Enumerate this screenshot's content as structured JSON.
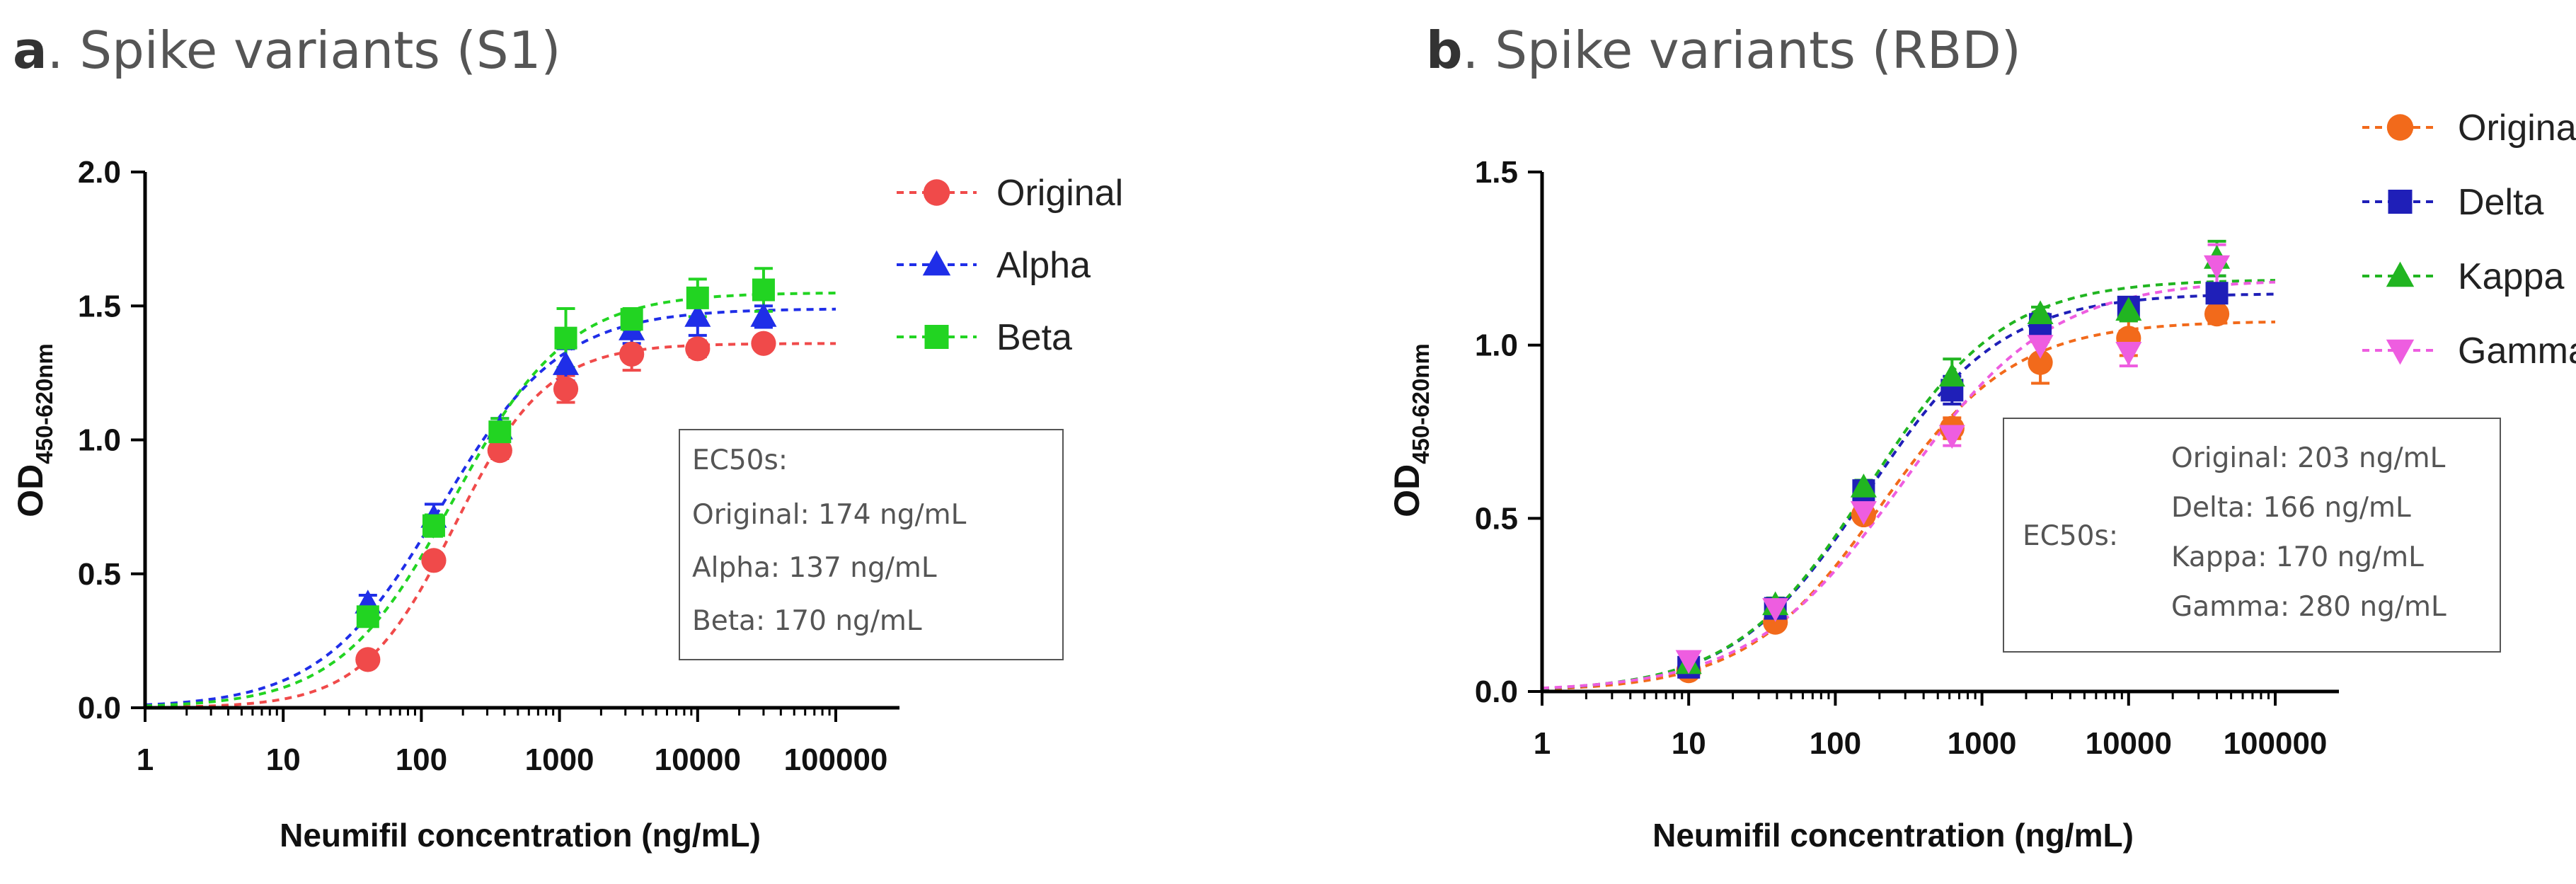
{
  "chart_data": [
    {
      "type": "line",
      "panel_letter": "a",
      "title": ". Spike variants (S1)",
      "xlabel": "Neumifil concentration (ng/mL)",
      "ylabel": "OD",
      "ylabel_subscript": "450-620nm",
      "xscale": "log10",
      "xlim": [
        1,
        100000
      ],
      "ylim": [
        0,
        2.0
      ],
      "xticks": [
        1,
        10,
        100,
        1000,
        10000,
        100000
      ],
      "xtick_labels": [
        "1",
        "10",
        "100",
        "1000",
        "10000",
        "100000"
      ],
      "yticks": [
        0,
        0.5,
        1.0,
        1.5,
        2.0
      ],
      "ytick_labels": [
        "0.0",
        "0.5",
        "1.0",
        "1.5",
        "2.0"
      ],
      "legend_position": "top-right",
      "series": [
        {
          "name": "Original",
          "color": "#f04a4a",
          "marker": "circle",
          "x": [
            41,
            123,
            370,
            1111,
            3333,
            10000,
            30000
          ],
          "y": [
            0.18,
            0.55,
            0.96,
            1.19,
            1.32,
            1.34,
            1.36
          ],
          "err": [
            0.02,
            0.02,
            0.03,
            0.05,
            0.06,
            0.03,
            0.02
          ],
          "fit": {
            "bottom": 0.0,
            "top": 1.36,
            "ec50": 174,
            "hill": 1.3
          }
        },
        {
          "name": "Alpha",
          "color": "#1f2ee8",
          "marker": "triangle",
          "x": [
            41,
            123,
            370,
            1111,
            3333,
            10000,
            30000
          ],
          "y": [
            0.39,
            0.71,
            1.04,
            1.28,
            1.41,
            1.46,
            1.46
          ],
          "err": [
            0.03,
            0.05,
            0.04,
            0.06,
            0.05,
            0.07,
            0.04
          ],
          "fit": {
            "bottom": 0.0,
            "top": 1.49,
            "ec50": 137,
            "hill": 1.0
          }
        },
        {
          "name": "Beta",
          "color": "#22d422",
          "marker": "square",
          "x": [
            41,
            123,
            370,
            1111,
            3333,
            10000,
            30000
          ],
          "y": [
            0.34,
            0.68,
            1.03,
            1.38,
            1.45,
            1.53,
            1.56
          ],
          "err": [
            0.03,
            0.04,
            0.05,
            0.11,
            0.04,
            0.07,
            0.08
          ],
          "fit": {
            "bottom": 0.0,
            "top": 1.55,
            "ec50": 170,
            "hill": 1.05
          }
        }
      ],
      "annotation": {
        "heading": "EC50s:",
        "lines": [
          "Original: 174 ng/mL",
          "Alpha: 137 ng/mL",
          "Beta: 170 ng/mL"
        ]
      }
    },
    {
      "type": "line",
      "panel_letter": "b",
      "title": ". Spike variants (RBD)",
      "xlabel": "Neumifil concentration (ng/mL)",
      "ylabel": "OD",
      "ylabel_subscript": "450-620nm",
      "xscale": "log10",
      "xlim": [
        1,
        100000
      ],
      "ylim": [
        0,
        1.5
      ],
      "xticks": [
        1,
        10,
        100,
        1000,
        10000,
        100000
      ],
      "xtick_labels": [
        "1",
        "10",
        "100",
        "1000",
        "10000",
        "100000"
      ],
      "yticks": [
        0,
        0.5,
        1.0,
        1.5
      ],
      "ytick_labels": [
        "0.0",
        "0.5",
        "1.0",
        "1.5"
      ],
      "legend_position": "top-right",
      "series": [
        {
          "name": "Original",
          "color": "#f26a1b",
          "marker": "circle",
          "x": [
            10,
            39,
            156,
            625,
            2500,
            10000,
            40000
          ],
          "y": [
            0.06,
            0.2,
            0.51,
            0.76,
            0.95,
            1.02,
            1.09
          ],
          "err": [
            0.01,
            0.02,
            0.02,
            0.03,
            0.06,
            0.05,
            0.02
          ],
          "fit": {
            "bottom": 0.0,
            "top": 1.07,
            "ec50": 203,
            "hill": 0.95
          }
        },
        {
          "name": "Delta",
          "color": "#1f1fb8",
          "marker": "square",
          "x": [
            10,
            39,
            156,
            625,
            2500,
            10000,
            40000
          ],
          "y": [
            0.07,
            0.24,
            0.58,
            0.87,
            1.06,
            1.11,
            1.15
          ],
          "err": [
            0.01,
            0.02,
            0.02,
            0.04,
            0.03,
            0.02,
            0.05
          ],
          "fit": {
            "bottom": 0.0,
            "top": 1.15,
            "ec50": 166,
            "hill": 0.95
          }
        },
        {
          "name": "Kappa",
          "color": "#21b521",
          "marker": "triangle",
          "x": [
            10,
            39,
            156,
            625,
            2500,
            10000,
            40000
          ],
          "y": [
            0.08,
            0.25,
            0.59,
            0.91,
            1.09,
            1.1,
            1.25
          ],
          "err": [
            0.01,
            0.02,
            0.02,
            0.05,
            0.02,
            0.03,
            0.05
          ],
          "fit": {
            "bottom": 0.0,
            "top": 1.19,
            "ec50": 170,
            "hill": 0.95
          }
        },
        {
          "name": "Gamma",
          "color": "#ee5de0",
          "marker": "triangle-down",
          "x": [
            10,
            39,
            156,
            625,
            2500,
            10000,
            40000
          ],
          "y": [
            0.09,
            0.24,
            0.52,
            0.74,
            1.0,
            0.98,
            1.23
          ],
          "err": [
            0.01,
            0.02,
            0.03,
            0.03,
            0.05,
            0.04,
            0.06
          ],
          "fit": {
            "bottom": 0.0,
            "top": 1.19,
            "ec50": 280,
            "hill": 0.85
          }
        }
      ],
      "annotation": {
        "heading": "EC50s:",
        "lines": [
          "Original: 203 ng/mL",
          "Delta: 166 ng/mL",
          "Kappa: 170 ng/mL",
          "Gamma: 280 ng/mL"
        ]
      }
    }
  ]
}
